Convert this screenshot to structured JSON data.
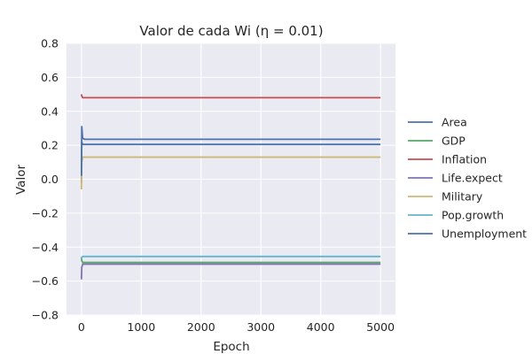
{
  "chart_data": {
    "type": "line",
    "title": "Valor de cada Wi (η = 0.01)",
    "xlabel": "Epoch",
    "ylabel": "Valor",
    "xlim": [
      -250,
      5250
    ],
    "ylim": [
      -0.8,
      0.8
    ],
    "x_ticks": [
      0,
      1000,
      2000,
      3000,
      4000,
      5000
    ],
    "x_tick_labels": [
      "0",
      "1000",
      "2000",
      "3000",
      "4000",
      "5000"
    ],
    "y_ticks": [
      -0.8,
      -0.6,
      -0.4,
      -0.2,
      0.0,
      0.2,
      0.4,
      0.6,
      0.8
    ],
    "y_tick_labels": [
      "−0.8",
      "−0.6",
      "−0.4",
      "−0.2",
      "0.0",
      "0.2",
      "0.4",
      "0.6",
      "0.8"
    ],
    "grid": true,
    "legend_position": "outside-right",
    "style": {
      "background": "#eaeaf2",
      "grid_color": "#ffffff"
    },
    "series": [
      {
        "name": "Area",
        "color": "#4c72b0",
        "x": [
          0,
          5,
          20,
          60,
          5000
        ],
        "y": [
          -0.02,
          0.31,
          0.24,
          0.235,
          0.235
        ]
      },
      {
        "name": "GDP",
        "color": "#55a868",
        "x": [
          0,
          5,
          20,
          60,
          5000
        ],
        "y": [
          -0.46,
          -0.48,
          -0.49,
          -0.49,
          -0.49
        ]
      },
      {
        "name": "Inflation",
        "color": "#c44e52",
        "x": [
          0,
          5,
          20,
          60,
          5000
        ],
        "y": [
          0.5,
          0.49,
          0.48,
          0.48,
          0.48
        ]
      },
      {
        "name": "Life.expect",
        "color": "#8172b2",
        "x": [
          0,
          5,
          20,
          60,
          5000
        ],
        "y": [
          -0.59,
          -0.52,
          -0.5,
          -0.5,
          -0.5
        ]
      },
      {
        "name": "Military",
        "color": "#ccb974",
        "x": [
          0,
          5,
          20,
          60,
          5000
        ],
        "y": [
          -0.06,
          0.1,
          0.13,
          0.13,
          0.13
        ]
      },
      {
        "name": "Pop.growth",
        "color": "#64b5cd",
        "x": [
          0,
          5,
          20,
          60,
          5000
        ],
        "y": [
          -0.47,
          -0.46,
          -0.455,
          -0.455,
          -0.455
        ]
      },
      {
        "name": "Unemployment",
        "color": "#4c72b0",
        "x": [
          0,
          5,
          20,
          60,
          5000
        ],
        "y": [
          0.02,
          0.22,
          0.205,
          0.205,
          0.205
        ]
      }
    ]
  }
}
